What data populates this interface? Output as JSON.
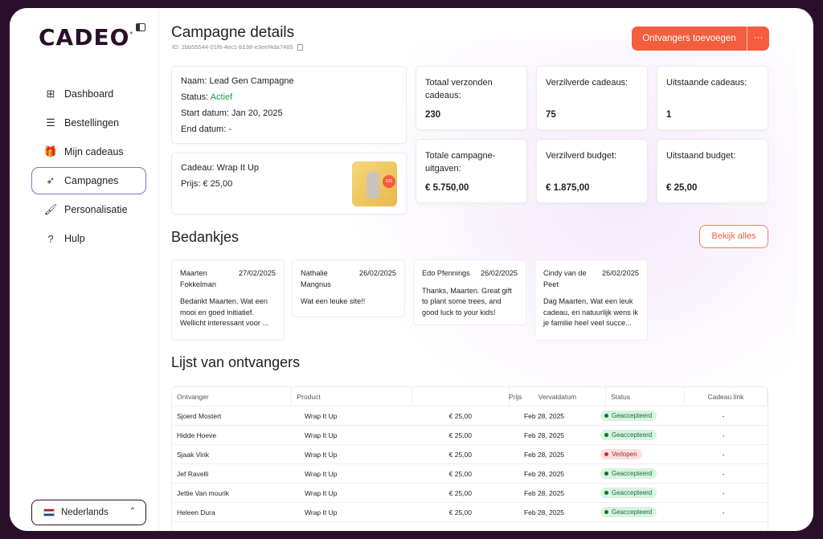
{
  "app": {
    "logo": "CADEO"
  },
  "sidebar": {
    "items": [
      {
        "label": "Dashboard",
        "icon": "grid-icon",
        "glyph": "⊞",
        "active": false
      },
      {
        "label": "Bestellingen",
        "icon": "list-icon",
        "glyph": "☰",
        "active": false
      },
      {
        "label": "Mijn cadeaus",
        "icon": "gift-icon",
        "glyph": "🎁",
        "active": false
      },
      {
        "label": "Campagnes",
        "icon": "rocket-icon",
        "glyph": "➶",
        "active": true
      },
      {
        "label": "Personalisatie",
        "icon": "paint-roller-icon",
        "glyph": "🖌",
        "active": false
      },
      {
        "label": "Hulp",
        "icon": "help-icon",
        "glyph": "?",
        "active": false
      }
    ],
    "language": "Nederlands"
  },
  "header": {
    "title": "Campagne details",
    "id": "ID: 2bb55544-01f6-4ec1-b138-e3eef4da7465",
    "primary_button": "Ontvangers toevoegen",
    "more_button": "···"
  },
  "info": {
    "name": "Naam: Lead Gen Campagne",
    "status_label": "Status:",
    "status_value": "Actief",
    "start": "Start datum: Jan 20, 2025",
    "end": "End datum: -"
  },
  "gift": {
    "label": "Cadeau: Wrap It Up",
    "price": "Prijs: € 25,00",
    "badge": "€25"
  },
  "stats": [
    {
      "label": "Totaal verzonden cadeaus:",
      "value": "230"
    },
    {
      "label": "Verzilverde cadeaus:",
      "value": "75"
    },
    {
      "label": "Uitstaande cadeaus:",
      "value": "1"
    },
    {
      "label": "Totale campagne-uitgaven:",
      "value": "€ 5.750,00"
    },
    {
      "label": "Verzilverd budget:",
      "value": "€ 1.875,00"
    },
    {
      "label": "Uitstaand budget:",
      "value": "€ 25,00"
    }
  ],
  "thanks": {
    "title": "Bedankjes",
    "view_all": "Bekijk alles",
    "items": [
      {
        "name": "Maarten Fokkelman",
        "date": "27/02/2025",
        "message": "Bedankt Maarten. Wat een mooi en goed initiatief. Wellicht interessant voor ..."
      },
      {
        "name": "Nathalie Mangnus",
        "date": "26/02/2025",
        "message": "Wat een leuke site!!"
      },
      {
        "name": "Edo Pfennings",
        "date": "26/02/2025",
        "message": "Thanks, Maarten. Great gift to plant some trees, and good luck to your kids!"
      },
      {
        "name": "Cindy van de Peet",
        "date": "26/02/2025",
        "message": "Dag Maarten, Wat een leuk cadeau,  en  natuurlijk wens ik je familie heel veel succe..."
      }
    ]
  },
  "recipients": {
    "title": "Lijst van ontvangers",
    "columns": [
      "Ontvanger",
      "Product",
      "Prijs",
      "Vervaldatum",
      "Status",
      "Cadeau link"
    ],
    "rows": [
      {
        "name": "Sjoerd Mostert",
        "product": "Wrap It Up",
        "price": "€ 25,00",
        "date": "Feb 28, 2025",
        "status": "Geaccepteerd",
        "link": "-"
      },
      {
        "name": "Hidde Hoeve",
        "product": "Wrap It Up",
        "price": "€ 25,00",
        "date": "Feb 28, 2025",
        "status": "Geaccepteerd",
        "link": "-"
      },
      {
        "name": "Sjaak Vink",
        "product": "Wrap It Up",
        "price": "€ 25,00",
        "date": "Feb 28, 2025",
        "status": "Verlopen",
        "link": "-"
      },
      {
        "name": "Jef Ravelli",
        "product": "Wrap It Up",
        "price": "€ 25,00",
        "date": "Feb 28, 2025",
        "status": "Geaccepteerd",
        "link": "-"
      },
      {
        "name": "Jettie Van mourik",
        "product": "Wrap It Up",
        "price": "€ 25,00",
        "date": "Feb 28, 2025",
        "status": "Geaccepteerd",
        "link": "-"
      },
      {
        "name": "Heleen Dura",
        "product": "Wrap It Up",
        "price": "€ 25,00",
        "date": "Feb 28, 2025",
        "status": "Geaccepteerd",
        "link": "-"
      }
    ]
  },
  "colors": {
    "accent": "#f45d3d",
    "brand": "#2a0f2a",
    "active_nav": "#8a6cc8",
    "ok": "#1d6b3a",
    "expired": "#c8322d"
  }
}
